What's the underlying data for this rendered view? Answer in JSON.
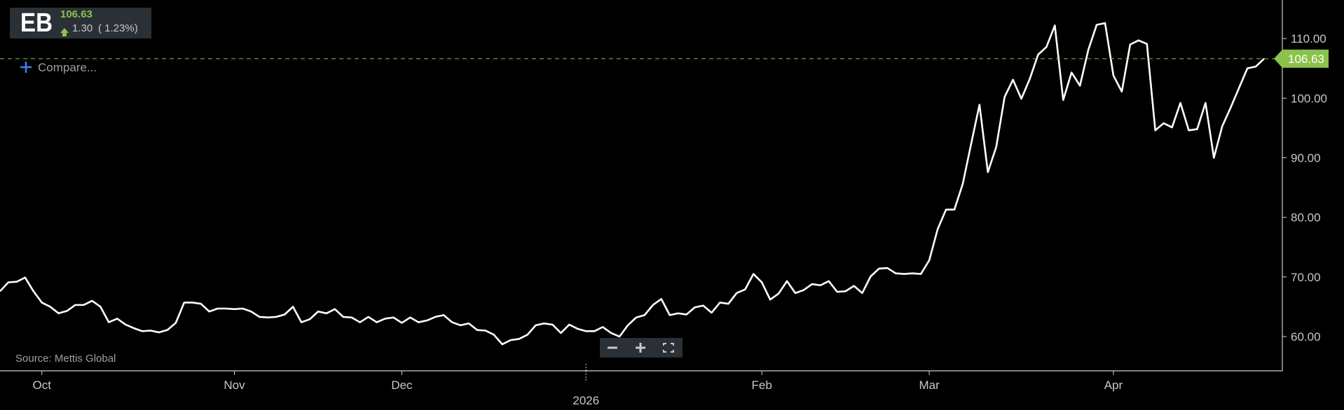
{
  "header": {
    "price": "106.63",
    "change": "1.30",
    "change_pct": "( 1.23%)",
    "compare": "Compare..."
  },
  "chart_data": {
    "type": "line",
    "source": "Source: Mettis Global",
    "categories": [
      null,
      null,
      null,
      null,
      null,
      "Oct",
      null,
      null,
      null,
      null,
      null,
      null,
      null,
      null,
      null,
      null,
      null,
      null,
      null,
      null,
      null,
      null,
      null,
      null,
      null,
      null,
      null,
      null,
      "Nov",
      null,
      null,
      null,
      null,
      null,
      null,
      null,
      null,
      null,
      null,
      null,
      null,
      null,
      null,
      null,
      null,
      null,
      null,
      null,
      "Dec",
      null,
      null,
      null,
      null,
      null,
      null,
      null,
      null,
      null,
      null,
      null,
      null,
      null,
      null,
      null,
      null,
      null,
      null,
      null,
      null,
      null,
      "2026",
      null,
      null,
      null,
      null,
      null,
      null,
      null,
      null,
      null,
      null,
      null,
      null,
      null,
      null,
      null,
      null,
      null,
      null,
      null,
      null,
      "Feb",
      null,
      null,
      null,
      null,
      null,
      null,
      null,
      null,
      null,
      null,
      null,
      null,
      null,
      null,
      null,
      null,
      null,
      null,
      null,
      "Mar",
      null,
      null,
      null,
      null,
      null,
      null,
      null,
      null,
      null,
      null,
      null,
      null,
      null,
      null,
      null,
      null,
      null,
      null,
      null,
      null,
      null,
      "Apr",
      null,
      null,
      null,
      null,
      null,
      null,
      null,
      null,
      null,
      null,
      null,
      null,
      null,
      null,
      null,
      null,
      null,
      null
    ],
    "series": [
      {
        "name": "EB",
        "color": "#ffffff",
        "values": [
          67.6,
          69.1,
          69.2,
          69.9,
          67.6,
          65.7,
          65.0,
          63.9,
          64.3,
          65.3,
          65.3,
          66.0,
          65.0,
          62.4,
          63.0,
          62.0,
          61.4,
          60.9,
          61.0,
          60.7,
          61.1,
          62.3,
          65.7,
          65.7,
          65.5,
          64.2,
          64.7,
          64.7,
          64.6,
          64.7,
          64.2,
          63.3,
          63.2,
          63.3,
          63.7,
          65.0,
          62.4,
          62.9,
          64.2,
          63.9,
          64.6,
          63.3,
          63.2,
          62.4,
          63.3,
          62.4,
          63.0,
          63.2,
          62.3,
          63.2,
          62.4,
          62.7,
          63.3,
          63.6,
          62.4,
          61.9,
          62.2,
          61.1,
          61.0,
          60.3,
          58.7,
          59.4,
          59.6,
          60.3,
          61.9,
          62.2,
          62.0,
          60.6,
          62.0,
          61.3,
          60.9,
          60.9,
          61.6,
          60.6,
          60.0,
          61.9,
          63.2,
          63.6,
          65.3,
          66.3,
          63.6,
          63.9,
          63.7,
          64.9,
          65.2,
          64.0,
          65.7,
          65.5,
          67.3,
          67.9,
          70.5,
          69.1,
          66.2,
          67.2,
          69.3,
          67.3,
          67.8,
          68.8,
          68.6,
          69.3,
          67.5,
          67.6,
          68.5,
          67.3,
          70.1,
          71.4,
          71.5,
          70.6,
          70.5,
          70.6,
          70.5,
          72.8,
          78.0,
          81.3,
          81.3,
          85.6,
          92.3,
          98.9,
          87.6,
          91.8,
          100.2,
          103.1,
          99.9,
          103.2,
          107.3,
          108.6,
          112.2,
          99.7,
          104.3,
          102.1,
          108.1,
          112.3,
          112.6,
          103.8,
          101.1,
          109.0,
          109.7,
          109.1,
          94.6,
          95.8,
          95.1,
          99.2,
          94.6,
          94.8,
          99.2,
          90.0,
          95.3,
          98.4,
          101.7,
          105.0,
          105.3,
          106.63
        ]
      }
    ],
    "last_color": "#8bc34a",
    "ylim": [
      54.25,
      116.47
    ],
    "yticks": [
      {
        "value": 60,
        "label": "60.00"
      },
      {
        "value": 70,
        "label": "70.00"
      },
      {
        "value": 80,
        "label": "80.00"
      },
      {
        "value": 90,
        "label": "90.00"
      },
      {
        "value": 100,
        "label": "100.00"
      },
      {
        "value": 110,
        "label": "110.00"
      }
    ],
    "grid": false
  }
}
